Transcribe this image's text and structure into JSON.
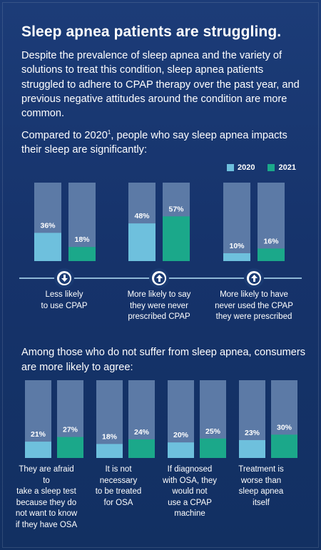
{
  "title": "Sleep apnea patients are struggling.",
  "intro": "Despite the prevalence of sleep apnea and the variety of solutions to treat this condition, sleep apnea patients struggled to adhere to CPAP therapy over the past year, and previous negative attitudes around the condition are more common.",
  "compare_text": "Compared to 2020",
  "compare_footnote": "1",
  "compare_text_tail": ", people who say sleep apnea impacts their sleep are significantly:",
  "among_text": "Among those who do not suffer from sleep apnea, consumers are more likely to agree:",
  "colors": {
    "y2020": "#6ec0dd",
    "y2021": "#1ba88a",
    "track": "#5c7aa6",
    "background": "#1a3a72"
  },
  "chart_data": [
    {
      "type": "bar",
      "legend": [
        "2020",
        "2021"
      ],
      "legend_position": "top-right",
      "ylim": [
        0,
        100
      ],
      "categories": [
        "Less likely to use CPAP",
        "More likely to say they were never prescribed CPAP",
        "More likely to have never used the CPAP they were prescribed"
      ],
      "category_icons": [
        "arrow-down-icon",
        "arrow-up-icon",
        "arrow-up-icon"
      ],
      "series": [
        {
          "name": "2020",
          "values": [
            36,
            48,
            10
          ]
        },
        {
          "name": "2021",
          "values": [
            18,
            57,
            16
          ]
        }
      ],
      "value_labels": [
        [
          "36%",
          "18%"
        ],
        [
          "48%",
          "57%"
        ],
        [
          "10%",
          "16%"
        ]
      ]
    },
    {
      "type": "bar",
      "ylim": [
        0,
        100
      ],
      "categories": [
        "They are afraid to take a sleep test because they do not want to know if they have OSA",
        "It is not necessary to be treated for OSA",
        "If diagnosed with OSA, they would not use a CPAP machine",
        "Treatment is worse than sleep apnea itself"
      ],
      "series": [
        {
          "name": "2020",
          "values": [
            21,
            18,
            20,
            23
          ]
        },
        {
          "name": "2021",
          "values": [
            27,
            24,
            25,
            30
          ]
        }
      ],
      "value_labels": [
        [
          "21%",
          "27%"
        ],
        [
          "18%",
          "24%"
        ],
        [
          "20%",
          "25%"
        ],
        [
          "23%",
          "30%"
        ]
      ]
    }
  ],
  "captions1": [
    [
      "Less likely",
      "to use CPAP"
    ],
    [
      "More likely to say",
      "they were never",
      "prescribed CPAP"
    ],
    [
      "More likely to have",
      "never used the CPAP",
      "they were prescribed"
    ]
  ],
  "captions2": [
    [
      "They are afraid to",
      "take a sleep test",
      "because they do",
      "not want to know",
      "if they have OSA"
    ],
    [
      "It is not",
      "necessary",
      "to be treated",
      "for OSA"
    ],
    [
      "If diagnosed",
      "with OSA, they",
      "would not",
      "use a CPAP",
      "machine"
    ],
    [
      "Treatment is",
      "worse than",
      "sleep apnea",
      "itself"
    ]
  ]
}
